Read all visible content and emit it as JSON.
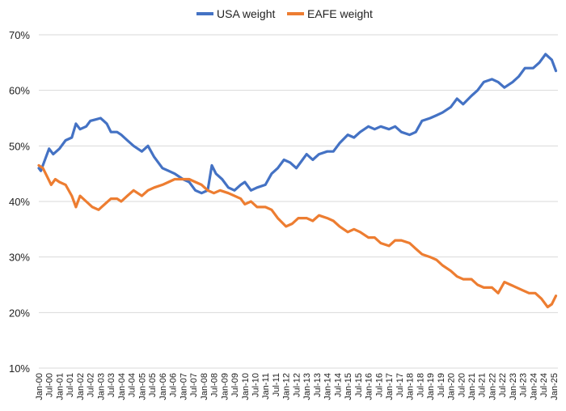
{
  "chart_data": {
    "type": "line",
    "title": "",
    "xlabel": "",
    "ylabel": "",
    "ylim": [
      10,
      70
    ],
    "y_ticks": [
      "10%",
      "20%",
      "30%",
      "40%",
      "50%",
      "60%",
      "70%"
    ],
    "x_ticks": [
      "Jan-00",
      "Jul-00",
      "Jan-01",
      "Jul-01",
      "Jan-02",
      "Jul-02",
      "Jan-03",
      "Jul-03",
      "Jan-04",
      "Jul-04",
      "Jan-05",
      "Jul-05",
      "Jan-06",
      "Jul-06",
      "Jan-07",
      "Jul-07",
      "Jan-08",
      "Jul-08",
      "Jan-09",
      "Jul-09",
      "Jan-10",
      "Jul-10",
      "Jan-11",
      "Jul-11",
      "Jan-12",
      "Jul-12",
      "Jan-13",
      "Jul-13",
      "Jan-14",
      "Jul-14",
      "Jan-15",
      "Jul-15",
      "Jan-16",
      "Jul-16",
      "Jan-17",
      "Jul-17",
      "Jan-18",
      "Jul-18",
      "Jan-19",
      "Jul-19",
      "Jan-20",
      "Jul-20",
      "Jan-21",
      "Jul-21",
      "Jan-22",
      "Jul-22",
      "Jan-23",
      "Jul-23",
      "Jan-24",
      "Jul-24",
      "Jan-25"
    ],
    "grid": "horizontal",
    "legend_position": "top-center",
    "series": [
      {
        "name": "USA weight",
        "color": "#4472c4",
        "points": [
          [
            2000.0,
            46.0
          ],
          [
            2000.1,
            45.5
          ],
          [
            2000.3,
            47.5
          ],
          [
            2000.5,
            49.5
          ],
          [
            2000.7,
            48.5
          ],
          [
            2001.0,
            49.5
          ],
          [
            2001.3,
            51.0
          ],
          [
            2001.6,
            51.5
          ],
          [
            2001.8,
            54.0
          ],
          [
            2002.0,
            53.0
          ],
          [
            2002.3,
            53.5
          ],
          [
            2002.5,
            54.5
          ],
          [
            2002.8,
            54.8
          ],
          [
            2003.0,
            55.0
          ],
          [
            2003.3,
            54.0
          ],
          [
            2003.5,
            52.5
          ],
          [
            2003.8,
            52.5
          ],
          [
            2004.0,
            52.0
          ],
          [
            2004.3,
            51.0
          ],
          [
            2004.6,
            50.0
          ],
          [
            2005.0,
            49.0
          ],
          [
            2005.3,
            50.0
          ],
          [
            2005.6,
            48.0
          ],
          [
            2006.0,
            46.0
          ],
          [
            2006.3,
            45.5
          ],
          [
            2006.6,
            45.0
          ],
          [
            2007.0,
            44.0
          ],
          [
            2007.3,
            43.5
          ],
          [
            2007.6,
            42.0
          ],
          [
            2007.9,
            41.5
          ],
          [
            2008.2,
            42.0
          ],
          [
            2008.4,
            46.5
          ],
          [
            2008.6,
            45.0
          ],
          [
            2008.9,
            44.0
          ],
          [
            2009.2,
            42.5
          ],
          [
            2009.5,
            42.0
          ],
          [
            2009.8,
            43.0
          ],
          [
            2010.0,
            43.5
          ],
          [
            2010.3,
            42.0
          ],
          [
            2010.6,
            42.5
          ],
          [
            2011.0,
            43.0
          ],
          [
            2011.3,
            45.0
          ],
          [
            2011.6,
            46.0
          ],
          [
            2011.9,
            47.5
          ],
          [
            2012.2,
            47.0
          ],
          [
            2012.5,
            46.0
          ],
          [
            2012.8,
            47.5
          ],
          [
            2013.0,
            48.5
          ],
          [
            2013.3,
            47.5
          ],
          [
            2013.6,
            48.5
          ],
          [
            2014.0,
            49.0
          ],
          [
            2014.3,
            49.0
          ],
          [
            2014.6,
            50.5
          ],
          [
            2015.0,
            52.0
          ],
          [
            2015.3,
            51.5
          ],
          [
            2015.6,
            52.5
          ],
          [
            2016.0,
            53.5
          ],
          [
            2016.3,
            53.0
          ],
          [
            2016.6,
            53.5
          ],
          [
            2017.0,
            53.0
          ],
          [
            2017.3,
            53.5
          ],
          [
            2017.6,
            52.5
          ],
          [
            2018.0,
            52.0
          ],
          [
            2018.3,
            52.5
          ],
          [
            2018.6,
            54.5
          ],
          [
            2019.0,
            55.0
          ],
          [
            2019.3,
            55.5
          ],
          [
            2019.6,
            56.0
          ],
          [
            2020.0,
            57.0
          ],
          [
            2020.3,
            58.5
          ],
          [
            2020.6,
            57.5
          ],
          [
            2021.0,
            59.0
          ],
          [
            2021.3,
            60.0
          ],
          [
            2021.6,
            61.5
          ],
          [
            2022.0,
            62.0
          ],
          [
            2022.3,
            61.5
          ],
          [
            2022.6,
            60.5
          ],
          [
            2023.0,
            61.5
          ],
          [
            2023.3,
            62.5
          ],
          [
            2023.6,
            64.0
          ],
          [
            2024.0,
            64.0
          ],
          [
            2024.3,
            65.0
          ],
          [
            2024.6,
            66.5
          ],
          [
            2024.9,
            65.5
          ],
          [
            2025.1,
            63.5
          ]
        ]
      },
      {
        "name": "EAFE weight",
        "color": "#ed7d31",
        "points": [
          [
            2000.0,
            46.5
          ],
          [
            2000.2,
            46.0
          ],
          [
            2000.4,
            44.5
          ],
          [
            2000.6,
            43.0
          ],
          [
            2000.8,
            44.0
          ],
          [
            2001.0,
            43.5
          ],
          [
            2001.3,
            43.0
          ],
          [
            2001.6,
            41.0
          ],
          [
            2001.8,
            39.0
          ],
          [
            2002.0,
            41.0
          ],
          [
            2002.3,
            40.0
          ],
          [
            2002.6,
            39.0
          ],
          [
            2002.9,
            38.5
          ],
          [
            2003.2,
            39.5
          ],
          [
            2003.5,
            40.5
          ],
          [
            2003.8,
            40.5
          ],
          [
            2004.0,
            40.0
          ],
          [
            2004.3,
            41.0
          ],
          [
            2004.6,
            42.0
          ],
          [
            2005.0,
            41.0
          ],
          [
            2005.3,
            42.0
          ],
          [
            2005.6,
            42.5
          ],
          [
            2006.0,
            43.0
          ],
          [
            2006.3,
            43.5
          ],
          [
            2006.6,
            44.0
          ],
          [
            2007.0,
            44.0
          ],
          [
            2007.3,
            44.0
          ],
          [
            2007.6,
            43.5
          ],
          [
            2007.9,
            43.0
          ],
          [
            2008.2,
            42.0
          ],
          [
            2008.5,
            41.5
          ],
          [
            2008.8,
            42.0
          ],
          [
            2009.2,
            41.5
          ],
          [
            2009.5,
            41.0
          ],
          [
            2009.8,
            40.5
          ],
          [
            2010.0,
            39.5
          ],
          [
            2010.3,
            40.0
          ],
          [
            2010.6,
            39.0
          ],
          [
            2011.0,
            39.0
          ],
          [
            2011.3,
            38.5
          ],
          [
            2011.6,
            37.0
          ],
          [
            2012.0,
            35.5
          ],
          [
            2012.3,
            36.0
          ],
          [
            2012.6,
            37.0
          ],
          [
            2013.0,
            37.0
          ],
          [
            2013.3,
            36.5
          ],
          [
            2013.6,
            37.5
          ],
          [
            2014.0,
            37.0
          ],
          [
            2014.3,
            36.5
          ],
          [
            2014.6,
            35.5
          ],
          [
            2015.0,
            34.5
          ],
          [
            2015.3,
            35.0
          ],
          [
            2015.6,
            34.5
          ],
          [
            2016.0,
            33.5
          ],
          [
            2016.3,
            33.5
          ],
          [
            2016.6,
            32.5
          ],
          [
            2017.0,
            32.0
          ],
          [
            2017.3,
            33.0
          ],
          [
            2017.6,
            33.0
          ],
          [
            2018.0,
            32.5
          ],
          [
            2018.3,
            31.5
          ],
          [
            2018.6,
            30.5
          ],
          [
            2019.0,
            30.0
          ],
          [
            2019.3,
            29.5
          ],
          [
            2019.6,
            28.5
          ],
          [
            2020.0,
            27.5
          ],
          [
            2020.3,
            26.5
          ],
          [
            2020.6,
            26.0
          ],
          [
            2021.0,
            26.0
          ],
          [
            2021.3,
            25.0
          ],
          [
            2021.6,
            24.5
          ],
          [
            2022.0,
            24.5
          ],
          [
            2022.3,
            23.5
          ],
          [
            2022.6,
            25.5
          ],
          [
            2022.9,
            25.0
          ],
          [
            2023.2,
            24.5
          ],
          [
            2023.5,
            24.0
          ],
          [
            2023.8,
            23.5
          ],
          [
            2024.1,
            23.5
          ],
          [
            2024.4,
            22.5
          ],
          [
            2024.7,
            21.0
          ],
          [
            2024.9,
            21.5
          ],
          [
            2025.1,
            23.0
          ]
        ]
      }
    ]
  }
}
